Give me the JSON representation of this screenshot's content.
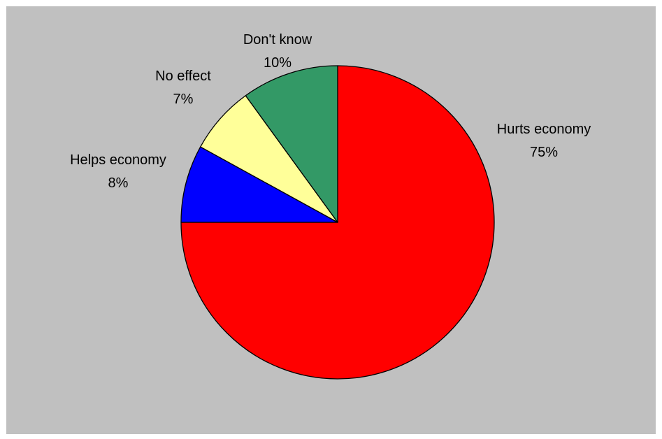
{
  "chart_data": {
    "type": "pie",
    "title": "",
    "start_angle_deg": 90,
    "direction": "clockwise",
    "slices": [
      {
        "label": "Hurts economy",
        "value": 75,
        "value_label": "75%",
        "color": "#ff0000"
      },
      {
        "label": "Helps economy",
        "value": 8,
        "value_label": "8%",
        "color": "#0000ff"
      },
      {
        "label": "No effect",
        "value": 7,
        "value_label": "7%",
        "color": "#ffff99"
      },
      {
        "label": "Don't know",
        "value": 10,
        "value_label": "10%",
        "color": "#339966"
      }
    ],
    "legend": "none",
    "background_color": "#c0c0c0"
  }
}
